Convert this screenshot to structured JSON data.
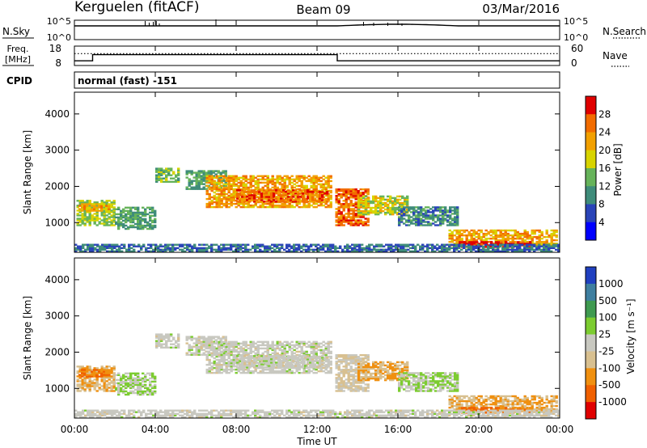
{
  "header": {
    "station": "Kerguelen (fitACF)",
    "beam": "Beam 09",
    "date": "03/Mar/2016"
  },
  "noise_panel": {
    "left_label": "N.Sky",
    "right_label": "N.Search",
    "left_ticks": [
      "10^5",
      "10^0"
    ],
    "right_ticks": [
      "10^5",
      "10^0"
    ]
  },
  "freq_panel": {
    "left_label_1": "Freq.",
    "left_label_2": "[MHz]",
    "right_label": "Nave",
    "left_ticks": [
      "18",
      "8"
    ],
    "right_ticks": [
      "60",
      "0"
    ],
    "freq_segments": [
      {
        "from_hour": 0,
        "to_hour": 0.9,
        "freq_mhz": 10
      },
      {
        "from_hour": 0.9,
        "to_hour": 13.0,
        "freq_mhz": 14
      },
      {
        "from_hour": 13.0,
        "to_hour": 24,
        "freq_mhz": 10
      }
    ],
    "nave": 40
  },
  "cpid": {
    "label": "CPID",
    "text": "normal (fast) -151"
  },
  "power_panel": {
    "ylabel": "Slant Range [km]",
    "y_ticks": [
      "1000",
      "2000",
      "3000",
      "4000"
    ],
    "colorbar_label": "Power [dB]",
    "colorbar_ticks": [
      "4",
      "8",
      "12",
      "16",
      "20",
      "24",
      "28"
    ],
    "colors": [
      "#0000ff",
      "#2a44b8",
      "#3f8c7a",
      "#66b35a",
      "#d8d400",
      "#f2a000",
      "#f26c00",
      "#e00000"
    ]
  },
  "velocity_panel": {
    "ylabel": "Slant Range [km]",
    "y_ticks": [
      "1000",
      "2000",
      "3000",
      "4000"
    ],
    "colorbar_label": "Velocity [m s⁻¹]",
    "colorbar_ticks": [
      "1000",
      "500",
      "100",
      "25",
      "-25",
      "-100",
      "-500",
      "-1000"
    ],
    "colors": [
      "#2040c0",
      "#3f7fa0",
      "#3f9a50",
      "#7ccc30",
      "#c8c8c0",
      "#d8c090",
      "#f09010",
      "#f06000",
      "#e00000"
    ]
  },
  "x_axis": {
    "label": "Time UT",
    "ticks": [
      "00:00",
      "04:00",
      "08:00",
      "12:00",
      "16:00",
      "20:00",
      "00:00"
    ]
  },
  "chart_data": {
    "type": "heatmap",
    "x_range_hours": [
      0,
      24
    ],
    "y_range_km": [
      180,
      4600
    ],
    "echo_regions": [
      {
        "t0": 0.1,
        "t1": 2.0,
        "r0": 900,
        "r1": 1600,
        "power_db": 16,
        "velocity": -100
      },
      {
        "t0": 0.2,
        "t1": 1.8,
        "r0": 1300,
        "r1": 1500,
        "power_db": 22,
        "velocity": -500
      },
      {
        "t0": 2.0,
        "t1": 4.0,
        "r0": 800,
        "r1": 1400,
        "power_db": 12,
        "velocity": 25
      },
      {
        "t0": 4.0,
        "t1": 5.2,
        "r0": 2100,
        "r1": 2500,
        "power_db": 14,
        "velocity": 0
      },
      {
        "t0": 5.5,
        "t1": 7.5,
        "r0": 1900,
        "r1": 2400,
        "power_db": 12,
        "velocity": 0
      },
      {
        "t0": 6.5,
        "t1": 12.7,
        "r0": 1400,
        "r1": 2300,
        "power_db": 22,
        "velocity": 0
      },
      {
        "t0": 8.0,
        "t1": 12.5,
        "r0": 1550,
        "r1": 1900,
        "power_db": 26,
        "velocity": 0
      },
      {
        "t0": 12.9,
        "t1": 14.5,
        "r0": 900,
        "r1": 1900,
        "power_db": 26,
        "velocity": -25
      },
      {
        "t0": 14.0,
        "t1": 16.5,
        "r0": 1200,
        "r1": 1700,
        "power_db": 18,
        "velocity": -100
      },
      {
        "t0": 16.0,
        "t1": 19.0,
        "r0": 900,
        "r1": 1400,
        "power_db": 10,
        "velocity": 25
      },
      {
        "t0": 18.5,
        "t1": 23.8,
        "r0": 350,
        "r1": 800,
        "power_db": 22,
        "velocity": -100
      },
      {
        "t0": 19.0,
        "t1": 22.5,
        "r0": 300,
        "r1": 450,
        "power_db": 30,
        "velocity": -500
      },
      {
        "t0": 0.0,
        "t1": 24.0,
        "r0": 180,
        "r1": 400,
        "power_db": 8,
        "velocity": 0
      }
    ]
  }
}
